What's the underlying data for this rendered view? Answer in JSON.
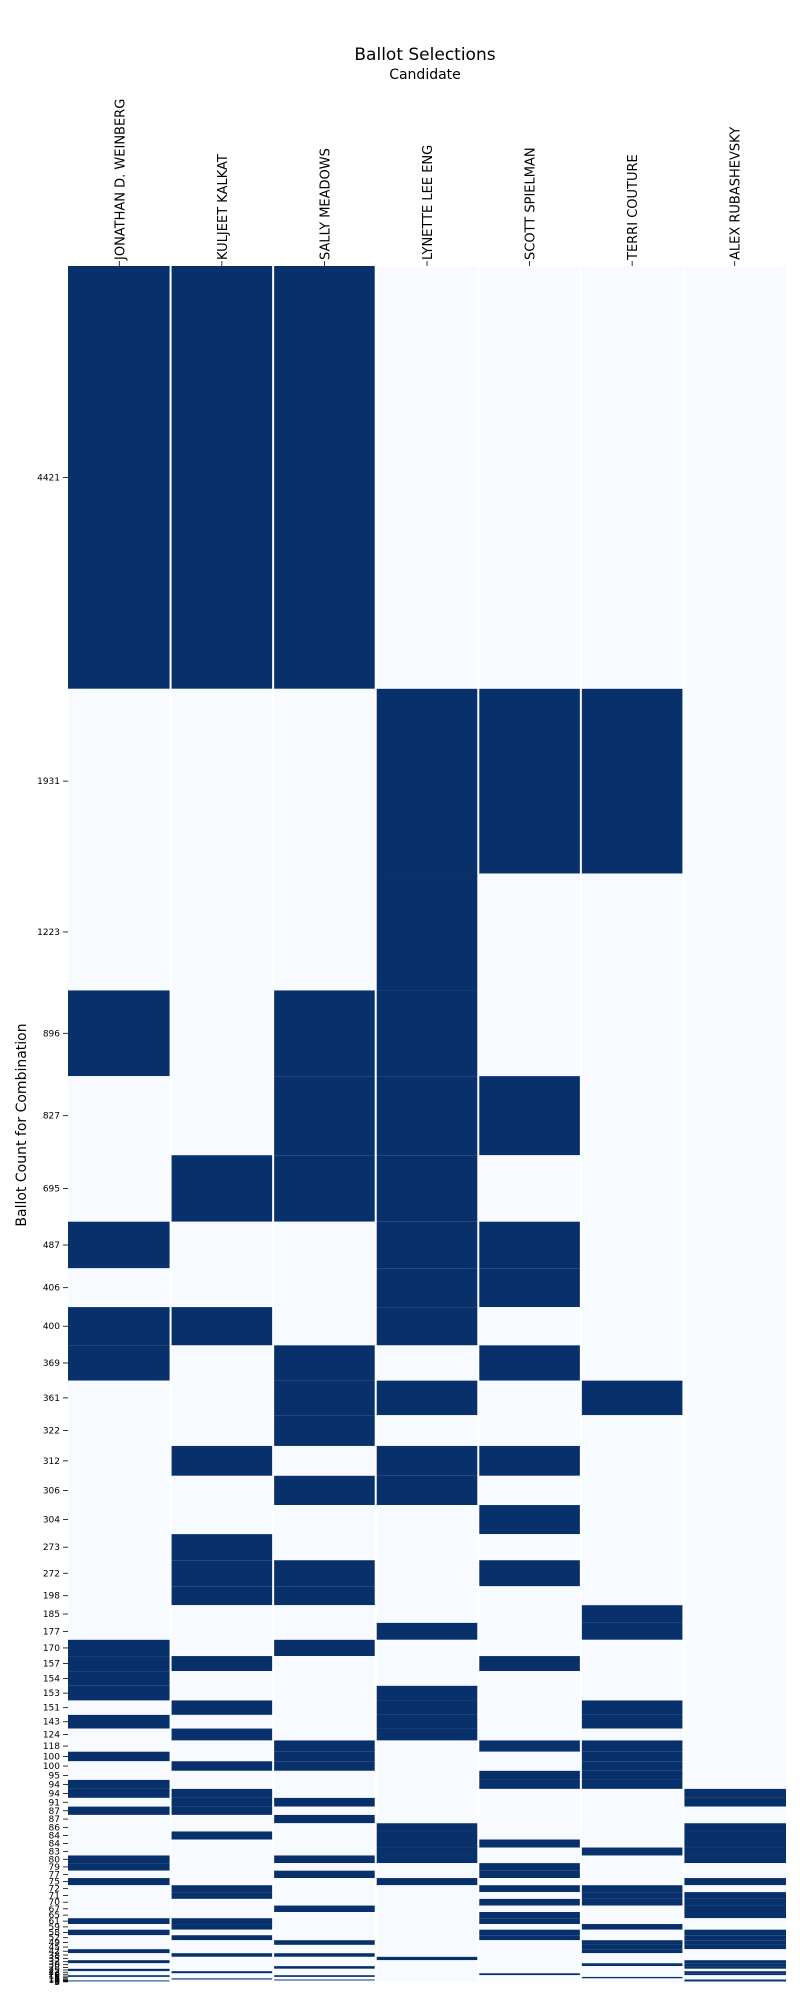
{
  "chart_data": {
    "type": "heatmap",
    "title": "Ballot Selections",
    "xlabel": "Candidate",
    "ylabel": "Ballot Count for Combination",
    "candidates": [
      "JONATHAN D. WEINBERG",
      "KULJEET KALKAT",
      "SALLY MEADOWS",
      "LYNETTE LEE ENG",
      "SCOTT SPIELMAN",
      "TERRI COUTURE",
      "ALEX RUBASHEVSKY"
    ],
    "colors": {
      "selected": "#08306b",
      "unselected": "#f7fbff",
      "separator": "#ffffff"
    },
    "rows": [
      {
        "count": 4421,
        "sel": [
          1,
          1,
          1,
          0,
          0,
          0,
          0
        ]
      },
      {
        "count": 1931,
        "sel": [
          0,
          0,
          0,
          1,
          1,
          1,
          0
        ]
      },
      {
        "count": 1223,
        "sel": [
          0,
          0,
          0,
          1,
          0,
          0,
          0
        ]
      },
      {
        "count": 896,
        "sel": [
          1,
          0,
          1,
          1,
          0,
          0,
          0
        ]
      },
      {
        "count": 827,
        "sel": [
          0,
          0,
          1,
          1,
          1,
          0,
          0
        ]
      },
      {
        "count": 695,
        "sel": [
          0,
          1,
          1,
          1,
          0,
          0,
          0
        ]
      },
      {
        "count": 487,
        "sel": [
          1,
          0,
          0,
          1,
          1,
          0,
          0
        ]
      },
      {
        "count": 406,
        "sel": [
          0,
          0,
          0,
          1,
          1,
          0,
          0
        ]
      },
      {
        "count": 400,
        "sel": [
          1,
          1,
          0,
          1,
          0,
          0,
          0
        ]
      },
      {
        "count": 369,
        "sel": [
          1,
          0,
          1,
          0,
          1,
          0,
          0
        ]
      },
      {
        "count": 361,
        "sel": [
          0,
          0,
          1,
          1,
          0,
          1,
          0
        ]
      },
      {
        "count": 322,
        "sel": [
          0,
          0,
          1,
          0,
          0,
          0,
          0
        ]
      },
      {
        "count": 312,
        "sel": [
          0,
          1,
          0,
          1,
          1,
          0,
          0
        ]
      },
      {
        "count": 306,
        "sel": [
          0,
          0,
          1,
          1,
          0,
          0,
          0
        ]
      },
      {
        "count": 304,
        "sel": [
          0,
          0,
          0,
          0,
          1,
          0,
          0
        ]
      },
      {
        "count": 273,
        "sel": [
          0,
          1,
          0,
          0,
          0,
          0,
          0
        ]
      },
      {
        "count": 272,
        "sel": [
          0,
          1,
          1,
          0,
          1,
          0,
          0
        ]
      },
      {
        "count": 198,
        "sel": [
          0,
          1,
          1,
          0,
          0,
          0,
          0
        ]
      },
      {
        "count": 185,
        "sel": [
          0,
          0,
          0,
          0,
          0,
          1,
          0
        ]
      },
      {
        "count": 177,
        "sel": [
          0,
          0,
          0,
          1,
          0,
          1,
          0
        ]
      },
      {
        "count": 170,
        "sel": [
          1,
          0,
          1,
          0,
          0,
          0,
          0
        ]
      },
      {
        "count": 157,
        "sel": [
          1,
          1,
          0,
          0,
          1,
          0,
          0
        ]
      },
      {
        "count": 154,
        "sel": [
          1,
          0,
          0,
          0,
          0,
          0,
          0
        ]
      },
      {
        "count": 153,
        "sel": [
          1,
          0,
          0,
          1,
          0,
          0,
          0
        ]
      },
      {
        "count": 151,
        "sel": [
          0,
          1,
          0,
          1,
          0,
          1,
          0
        ]
      },
      {
        "count": 143,
        "sel": [
          1,
          0,
          0,
          1,
          0,
          1,
          0
        ]
      },
      {
        "count": 124,
        "sel": [
          0,
          1,
          0,
          1,
          0,
          0,
          0
        ]
      },
      {
        "count": 118,
        "sel": [
          0,
          0,
          1,
          0,
          1,
          1,
          0
        ]
      },
      {
        "count": 100,
        "sel": [
          1,
          0,
          1,
          0,
          0,
          1,
          0
        ]
      },
      {
        "count": 100,
        "sel": [
          0,
          1,
          1,
          0,
          0,
          1,
          0
        ]
      },
      {
        "count": 95,
        "sel": [
          0,
          0,
          0,
          0,
          1,
          1,
          0
        ]
      },
      {
        "count": 94,
        "sel": [
          1,
          0,
          0,
          0,
          1,
          1,
          0
        ]
      },
      {
        "count": 94,
        "sel": [
          1,
          1,
          0,
          0,
          0,
          0,
          1
        ]
      },
      {
        "count": 91,
        "sel": [
          0,
          1,
          1,
          0,
          0,
          0,
          1
        ]
      },
      {
        "count": 87,
        "sel": [
          1,
          1,
          0,
          0,
          0,
          0,
          0
        ]
      },
      {
        "count": 87,
        "sel": [
          0,
          0,
          1,
          0,
          0,
          0,
          0
        ]
      },
      {
        "count": 86,
        "sel": [
          0,
          0,
          0,
          1,
          0,
          0,
          1
        ]
      },
      {
        "count": 84,
        "sel": [
          0,
          1,
          0,
          1,
          0,
          0,
          1
        ]
      },
      {
        "count": 84,
        "sel": [
          0,
          0,
          0,
          1,
          1,
          0,
          1
        ]
      },
      {
        "count": 83,
        "sel": [
          0,
          0,
          0,
          1,
          0,
          1,
          1
        ]
      },
      {
        "count": 80,
        "sel": [
          1,
          0,
          1,
          1,
          0,
          0,
          1
        ]
      },
      {
        "count": 79,
        "sel": [
          1,
          0,
          0,
          0,
          1,
          0,
          0
        ]
      },
      {
        "count": 77,
        "sel": [
          0,
          0,
          1,
          0,
          1,
          0,
          0
        ]
      },
      {
        "count": 75,
        "sel": [
          1,
          0,
          0,
          1,
          0,
          0,
          1
        ]
      },
      {
        "count": 72,
        "sel": [
          0,
          1,
          0,
          0,
          1,
          1,
          0
        ]
      },
      {
        "count": 71,
        "sel": [
          0,
          1,
          0,
          0,
          0,
          1,
          1
        ]
      },
      {
        "count": 70,
        "sel": [
          0,
          0,
          0,
          0,
          1,
          1,
          1
        ]
      },
      {
        "count": 67,
        "sel": [
          0,
          0,
          1,
          0,
          0,
          0,
          1
        ]
      },
      {
        "count": 65,
        "sel": [
          0,
          0,
          0,
          0,
          1,
          0,
          1
        ]
      },
      {
        "count": 61,
        "sel": [
          1,
          1,
          0,
          0,
          1,
          0,
          0
        ]
      },
      {
        "count": 59,
        "sel": [
          0,
          1,
          0,
          0,
          0,
          1,
          0
        ]
      },
      {
        "count": 58,
        "sel": [
          1,
          0,
          0,
          0,
          1,
          0,
          1
        ]
      },
      {
        "count": 52,
        "sel": [
          0,
          1,
          0,
          0,
          1,
          0,
          1
        ]
      },
      {
        "count": 49,
        "sel": [
          0,
          0,
          1,
          0,
          0,
          1,
          1
        ]
      },
      {
        "count": 45,
        "sel": [
          0,
          0,
          0,
          0,
          0,
          1,
          1
        ]
      },
      {
        "count": 42,
        "sel": [
          1,
          0,
          0,
          0,
          0,
          1,
          0
        ]
      },
      {
        "count": 38,
        "sel": [
          0,
          1,
          1,
          0,
          0,
          0,
          0
        ]
      },
      {
        "count": 35,
        "sel": [
          0,
          0,
          0,
          1,
          0,
          0,
          0
        ]
      },
      {
        "count": 32,
        "sel": [
          1,
          0,
          0,
          0,
          0,
          0,
          1
        ]
      },
      {
        "count": 30,
        "sel": [
          0,
          0,
          0,
          0,
          0,
          1,
          1
        ]
      },
      {
        "count": 28,
        "sel": [
          0,
          0,
          1,
          0,
          0,
          0,
          1
        ]
      },
      {
        "count": 25,
        "sel": [
          1,
          0,
          0,
          0,
          0,
          0,
          0
        ]
      },
      {
        "count": 22,
        "sel": [
          0,
          1,
          0,
          0,
          0,
          0,
          1
        ]
      },
      {
        "count": 20,
        "sel": [
          0,
          0,
          0,
          0,
          1,
          0,
          1
        ]
      },
      {
        "count": 18,
        "sel": [
          1,
          0,
          1,
          0,
          0,
          0,
          0
        ]
      },
      {
        "count": 15,
        "sel": [
          0,
          0,
          0,
          0,
          0,
          1,
          0
        ]
      },
      {
        "count": 12,
        "sel": [
          0,
          1,
          0,
          0,
          0,
          0,
          0
        ]
      },
      {
        "count": 10,
        "sel": [
          0,
          0,
          1,
          0,
          0,
          0,
          1
        ]
      },
      {
        "count": 8,
        "sel": [
          1,
          0,
          0,
          0,
          0,
          0,
          1
        ]
      },
      {
        "count": 5,
        "sel": [
          0,
          0,
          0,
          0,
          0,
          0,
          1
        ]
      },
      {
        "count": 3,
        "sel": [
          1,
          0,
          0,
          0,
          0,
          0,
          0
        ]
      }
    ]
  }
}
